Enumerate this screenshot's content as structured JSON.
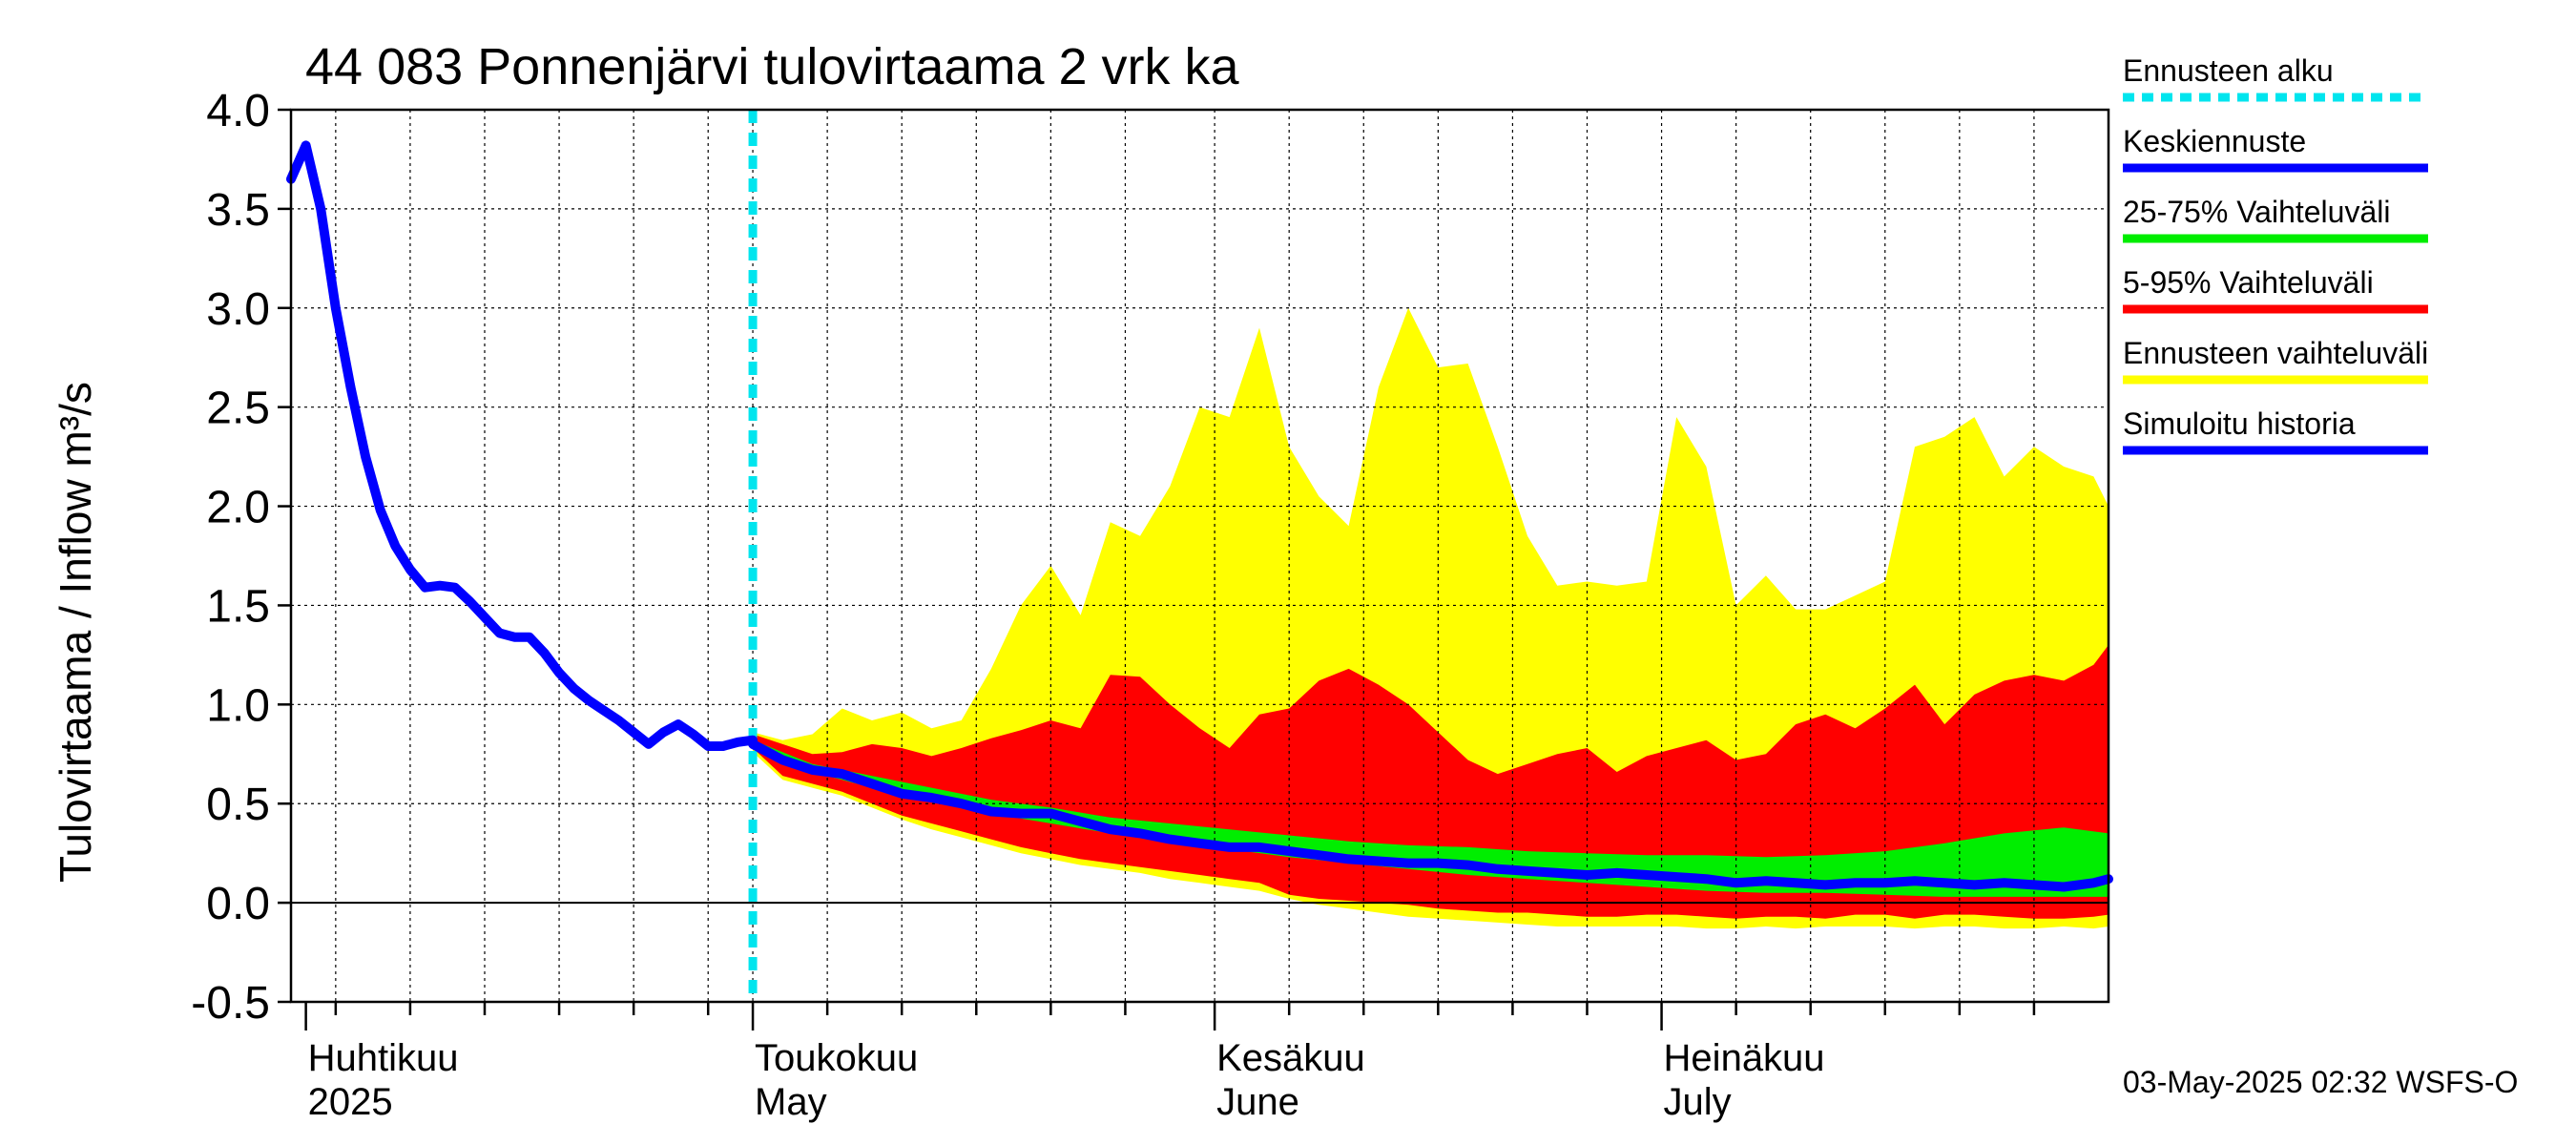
{
  "chart_data": {
    "type": "area",
    "title": "44 083 Ponnenjärvi tulovirtaama 2 vrk ka",
    "ylabel": "Tulovirtaama / Inflow   m³/s",
    "ylim": [
      -0.5,
      4.0
    ],
    "yticks": [
      "-0.5",
      "0.0",
      "0.5",
      "1.0",
      "1.5",
      "2.0",
      "2.5",
      "3.0",
      "3.5",
      "4.0"
    ],
    "xlim_day_of_year": [
      90,
      212
    ],
    "month_labels": [
      {
        "fi": "Huhtikuu",
        "en": "2025",
        "day": 91
      },
      {
        "fi": "Toukokuu",
        "en": "May",
        "day": 121
      },
      {
        "fi": "Kesäkuu",
        "en": "June",
        "day": 152
      },
      {
        "fi": "Heinäkuu",
        "en": "July",
        "day": 182
      }
    ],
    "forecast_start_day": 121,
    "legend": [
      {
        "label": "Ennusteen alku",
        "color": "#00e5ee",
        "style": "dotted"
      },
      {
        "label": "Keskiennuste",
        "color": "#0000ff",
        "style": "solid"
      },
      {
        "label": "25-75% Vaihteluväli",
        "color": "#00ee00",
        "style": "solid"
      },
      {
        "label": "5-95% Vaihteluväli",
        "color": "#ff0000",
        "style": "solid"
      },
      {
        "label": "Ennusteen vaihteluväli",
        "color": "#ffff00",
        "style": "solid"
      },
      {
        "label": "Simuloitu historia",
        "color": "#0000ff",
        "style": "solid"
      }
    ],
    "series": [
      {
        "name": "Simuloitu historia",
        "x": [
          90,
          91,
          92,
          93,
          94,
          95,
          96,
          97,
          98,
          99,
          100,
          101,
          102,
          103,
          104,
          105,
          106,
          107,
          108,
          109,
          110,
          111,
          112,
          113,
          114,
          115,
          116,
          117,
          118,
          119,
          120,
          121
        ],
        "values": [
          3.65,
          3.82,
          3.5,
          3.0,
          2.6,
          2.25,
          1.98,
          1.8,
          1.68,
          1.59,
          1.6,
          1.59,
          1.52,
          1.44,
          1.36,
          1.34,
          1.34,
          1.26,
          1.16,
          1.08,
          1.02,
          0.97,
          0.92,
          0.86,
          0.8,
          0.86,
          0.9,
          0.85,
          0.79,
          0.79,
          0.81,
          0.82
        ]
      },
      {
        "name": "Keskiennuste",
        "x": [
          121,
          123,
          125,
          127,
          129,
          131,
          133,
          135,
          137,
          139,
          141,
          143,
          145,
          147,
          149,
          151,
          153,
          155,
          157,
          159,
          161,
          163,
          165,
          167,
          169,
          171,
          173,
          175,
          177,
          179,
          181,
          183,
          185,
          187,
          189,
          191,
          193,
          195,
          197,
          199,
          201,
          203,
          205,
          207,
          209,
          211,
          212
        ],
        "values": [
          0.8,
          0.72,
          0.67,
          0.65,
          0.6,
          0.55,
          0.53,
          0.5,
          0.46,
          0.45,
          0.45,
          0.41,
          0.37,
          0.35,
          0.32,
          0.3,
          0.28,
          0.28,
          0.26,
          0.24,
          0.22,
          0.21,
          0.2,
          0.2,
          0.19,
          0.17,
          0.16,
          0.15,
          0.14,
          0.15,
          0.14,
          0.13,
          0.12,
          0.1,
          0.11,
          0.1,
          0.09,
          0.1,
          0.1,
          0.11,
          0.1,
          0.09,
          0.1,
          0.09,
          0.08,
          0.1,
          0.12
        ]
      },
      {
        "name": "25-75% Vaihteluväli",
        "x": [
          121,
          125,
          129,
          133,
          137,
          141,
          145,
          149,
          153,
          157,
          161,
          165,
          169,
          173,
          177,
          181,
          185,
          189,
          193,
          197,
          201,
          205,
          209,
          212
        ],
        "upper": [
          0.82,
          0.7,
          0.64,
          0.58,
          0.52,
          0.48,
          0.43,
          0.4,
          0.37,
          0.34,
          0.31,
          0.29,
          0.28,
          0.26,
          0.25,
          0.24,
          0.24,
          0.23,
          0.24,
          0.26,
          0.3,
          0.35,
          0.38,
          0.35
        ],
        "lower": [
          0.8,
          0.66,
          0.58,
          0.52,
          0.45,
          0.4,
          0.35,
          0.31,
          0.27,
          0.23,
          0.2,
          0.17,
          0.14,
          0.12,
          0.1,
          0.08,
          0.06,
          0.05,
          0.05,
          0.04,
          0.03,
          0.03,
          0.03,
          0.03
        ]
      },
      {
        "name": "5-95% Vaihteluväli",
        "x": [
          121,
          123,
          125,
          127,
          129,
          131,
          133,
          135,
          137,
          139,
          141,
          143,
          145,
          147,
          149,
          151,
          153,
          155,
          157,
          159,
          161,
          163,
          165,
          167,
          169,
          171,
          173,
          175,
          177,
          179,
          181,
          183,
          185,
          187,
          189,
          191,
          193,
          195,
          197,
          199,
          201,
          203,
          205,
          207,
          209,
          211,
          212
        ],
        "upper": [
          0.85,
          0.8,
          0.75,
          0.76,
          0.8,
          0.78,
          0.74,
          0.78,
          0.83,
          0.87,
          0.92,
          0.88,
          1.15,
          1.14,
          1.0,
          0.88,
          0.78,
          0.95,
          0.98,
          1.12,
          1.18,
          1.1,
          1.0,
          0.86,
          0.72,
          0.65,
          0.7,
          0.75,
          0.78,
          0.66,
          0.74,
          0.78,
          0.82,
          0.72,
          0.75,
          0.9,
          0.95,
          0.88,
          0.98,
          1.1,
          0.9,
          1.05,
          1.12,
          1.15,
          1.12,
          1.2,
          1.3
        ],
        "lower": [
          0.78,
          0.64,
          0.6,
          0.56,
          0.5,
          0.44,
          0.4,
          0.36,
          0.32,
          0.28,
          0.25,
          0.22,
          0.2,
          0.18,
          0.16,
          0.14,
          0.12,
          0.1,
          0.04,
          0.02,
          0.01,
          0.0,
          -0.01,
          -0.03,
          -0.04,
          -0.05,
          -0.05,
          -0.06,
          -0.07,
          -0.07,
          -0.06,
          -0.06,
          -0.07,
          -0.08,
          -0.07,
          -0.07,
          -0.08,
          -0.06,
          -0.06,
          -0.08,
          -0.06,
          -0.06,
          -0.07,
          -0.08,
          -0.08,
          -0.07,
          -0.06
        ]
      },
      {
        "name": "Ennusteen vaihteluväli",
        "x": [
          121,
          123,
          125,
          127,
          129,
          131,
          133,
          135,
          137,
          139,
          141,
          143,
          145,
          147,
          149,
          151,
          153,
          155,
          157,
          159,
          161,
          163,
          165,
          167,
          169,
          171,
          173,
          175,
          177,
          179,
          181,
          183,
          185,
          187,
          189,
          191,
          193,
          195,
          197,
          199,
          201,
          203,
          205,
          207,
          209,
          211,
          212
        ],
        "upper": [
          0.86,
          0.82,
          0.85,
          0.98,
          0.92,
          0.96,
          0.88,
          0.92,
          1.18,
          1.5,
          1.7,
          1.45,
          1.92,
          1.85,
          2.1,
          2.5,
          2.45,
          2.9,
          2.3,
          2.05,
          1.9,
          2.6,
          3.0,
          2.7,
          2.72,
          2.3,
          1.85,
          1.6,
          1.62,
          1.6,
          1.62,
          2.45,
          2.2,
          1.5,
          1.65,
          1.48,
          1.48,
          1.55,
          1.62,
          2.3,
          2.35,
          2.45,
          2.15,
          2.3,
          2.2,
          2.15,
          2.0
        ],
        "lower": [
          0.76,
          0.62,
          0.58,
          0.54,
          0.48,
          0.42,
          0.37,
          0.33,
          0.29,
          0.25,
          0.22,
          0.19,
          0.17,
          0.15,
          0.12,
          0.1,
          0.08,
          0.06,
          0.02,
          -0.01,
          -0.03,
          -0.05,
          -0.07,
          -0.08,
          -0.09,
          -0.1,
          -0.11,
          -0.12,
          -0.12,
          -0.12,
          -0.12,
          -0.12,
          -0.13,
          -0.13,
          -0.12,
          -0.13,
          -0.12,
          -0.12,
          -0.12,
          -0.13,
          -0.12,
          -0.12,
          -0.13,
          -0.13,
          -0.12,
          -0.13,
          -0.12
        ]
      }
    ]
  },
  "footer": "03-May-2025 02:32 WSFS-O"
}
